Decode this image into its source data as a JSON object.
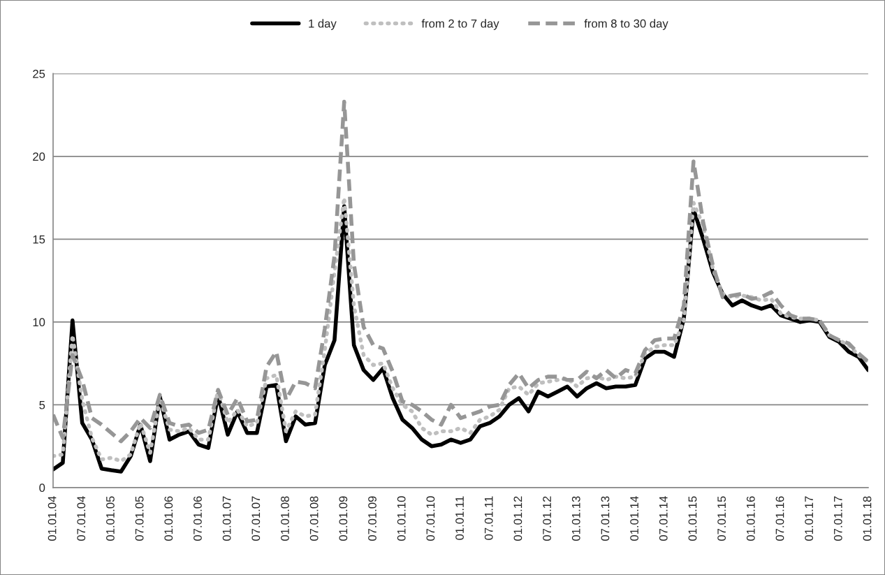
{
  "chart_data": {
    "type": "line",
    "categories": [
      "01.01.04",
      null,
      null,
      "07.01.04",
      null,
      null,
      "01.01.05",
      null,
      null,
      "07.01.05",
      null,
      null,
      "01.01.06",
      null,
      null,
      "07.01.06",
      null,
      null,
      "01.01.07",
      null,
      null,
      "07.01.07",
      null,
      null,
      "01.01.08",
      null,
      null,
      "07.01.08",
      null,
      null,
      "01.01.09",
      null,
      null,
      "07.01.09",
      null,
      null,
      "01.01.10",
      null,
      null,
      "07.01.10",
      null,
      null,
      "01.01.11",
      null,
      null,
      "07.01.11",
      null,
      null,
      "01.01.12",
      null,
      null,
      "07.01.12",
      null,
      null,
      "01.01.13",
      null,
      null,
      "07.01.13",
      null,
      null,
      "01.01.14",
      null,
      null,
      "07.01.14",
      null,
      null,
      "01.01.15",
      null,
      null,
      "07.01.15",
      null,
      null,
      "01.01.16",
      null,
      null,
      "07.01.16",
      null,
      null,
      "01.01.17",
      null,
      null,
      "07.01.17",
      null,
      null,
      "01.01.18"
    ],
    "series": [
      {
        "name": "1 day",
        "color": "#000000",
        "line_style": "solid",
        "values": [
          1.1,
          1.5,
          10.1,
          3.9,
          2.9,
          1.15,
          1.05,
          0.97,
          1.9,
          3.8,
          1.6,
          5.5,
          2.9,
          3.2,
          3.4,
          2.6,
          2.4,
          5.6,
          3.2,
          4.6,
          3.3,
          3.3,
          6.1,
          6.2,
          2.8,
          4.3,
          3.8,
          3.9,
          7.4,
          8.9,
          17.0,
          8.6,
          7.1,
          6.5,
          7.2,
          5.4,
          4.1,
          3.6,
          2.9,
          2.5,
          2.6,
          2.9,
          2.7,
          2.9,
          3.7,
          3.9,
          4.3,
          5.0,
          5.4,
          4.6,
          5.8,
          5.5,
          5.8,
          6.1,
          5.5,
          6.0,
          6.3,
          6.0,
          6.1,
          6.1,
          6.2,
          7.8,
          8.2,
          8.2,
          7.9,
          10.2,
          16.8,
          15.0,
          13.0,
          11.7,
          11.0,
          11.3,
          11.0,
          10.8,
          11.0,
          10.4,
          10.2,
          10.0,
          10.1,
          10.0,
          9.1,
          8.8,
          8.2,
          7.9,
          7.1
        ]
      },
      {
        "name": "from 2 to 7 day",
        "color": "#bfbfbf",
        "line_style": "dotted",
        "values": [
          1.9,
          2.0,
          9.2,
          5.3,
          3.0,
          1.7,
          1.8,
          1.6,
          2.0,
          3.9,
          2.1,
          5.4,
          3.5,
          3.4,
          3.6,
          2.9,
          2.9,
          5.9,
          3.9,
          4.7,
          3.7,
          3.9,
          6.6,
          6.8,
          3.4,
          4.6,
          4.3,
          4.4,
          8.3,
          13.0,
          17.5,
          11.0,
          8.0,
          7.4,
          7.5,
          6.0,
          5.0,
          4.6,
          3.6,
          3.2,
          3.4,
          3.4,
          3.6,
          3.3,
          4.1,
          4.3,
          4.7,
          6.0,
          6.1,
          5.6,
          6.3,
          6.4,
          6.5,
          6.6,
          6.1,
          6.6,
          6.7,
          6.5,
          6.7,
          6.6,
          6.7,
          8.1,
          8.5,
          8.6,
          8.6,
          10.1,
          17.2,
          15.8,
          13.2,
          11.7,
          11.5,
          11.6,
          11.5,
          11.3,
          11.4,
          10.5,
          10.3,
          10.2,
          10.2,
          10.1,
          9.2,
          8.9,
          8.6,
          8.0,
          7.6
        ]
      },
      {
        "name": "from 8 to 30 day",
        "color": "#969696",
        "line_style": "dashed",
        "values": [
          4.4,
          3.0,
          8.0,
          6.5,
          4.2,
          3.8,
          3.3,
          2.8,
          3.4,
          4.2,
          3.6,
          5.6,
          3.9,
          3.7,
          3.8,
          3.3,
          3.5,
          5.9,
          4.4,
          5.4,
          4.0,
          4.1,
          7.3,
          8.2,
          5.3,
          6.4,
          6.3,
          6.0,
          9.6,
          14.0,
          23.3,
          13.5,
          9.7,
          8.6,
          8.4,
          7.0,
          5.2,
          5.0,
          4.6,
          4.1,
          3.8,
          5.0,
          4.2,
          4.4,
          4.6,
          4.9,
          5.0,
          6.2,
          6.9,
          6.0,
          6.5,
          6.7,
          6.7,
          6.5,
          6.5,
          7.0,
          6.6,
          7.1,
          6.6,
          7.1,
          6.9,
          8.3,
          8.9,
          9.0,
          9.0,
          11.0,
          19.7,
          16.0,
          13.4,
          11.5,
          11.6,
          11.7,
          11.4,
          11.5,
          11.8,
          11.0,
          10.4,
          10.2,
          10.2,
          10.1,
          9.2,
          8.9,
          8.7,
          8.1,
          7.6
        ]
      }
    ],
    "ylim": [
      0,
      25
    ],
    "yticks": [
      0,
      5,
      10,
      15,
      20,
      25
    ],
    "grid": "y",
    "legend": "top",
    "marker": "none"
  }
}
